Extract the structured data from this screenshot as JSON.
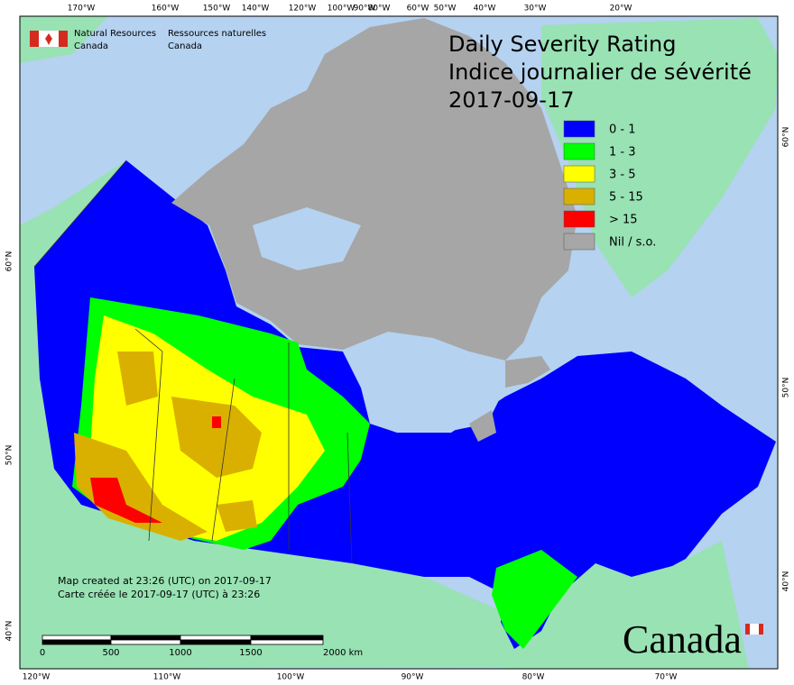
{
  "agency": {
    "en": [
      "Natural Resources",
      "Canada"
    ],
    "fr": [
      "Ressources naturelles",
      "Canada"
    ]
  },
  "title": {
    "lines": [
      "Daily Severity Rating",
      "Indice journalier de sévérité",
      "2017-09-17"
    ]
  },
  "legend": [
    {
      "label": "0 - 1",
      "color": "#0000ff"
    },
    {
      "label": "1 - 3",
      "color": "#00ff00"
    },
    {
      "label": "3 - 5",
      "color": "#ffff00"
    },
    {
      "label": "5 - 15",
      "color": "#d9b000"
    },
    {
      "label": "> 15",
      "color": "#ff0000"
    },
    {
      "label": "Nil / s.o.",
      "color": "#a6a6a6"
    }
  ],
  "credits": [
    "Map created at 23:26 (UTC) on 2017-09-17",
    "Carte créée le 2017-09-17 (UTC) à 23:26"
  ],
  "scale_bar": [
    "0",
    "500",
    "1000",
    "1500",
    "2000 km"
  ],
  "wordmark": "Canada",
  "graticule": {
    "top": [
      "170°W",
      "160°W",
      "150°W",
      "140°W",
      "120°W",
      "100°W",
      "90°W",
      "80°W",
      "60°W",
      "50°W",
      "40°W",
      "30°W",
      "20°W"
    ],
    "bottom": [
      "120°W",
      "110°W",
      "100°W",
      "90°W",
      "80°W",
      "70°W"
    ],
    "left": [
      "60°N",
      "50°N",
      "40°N"
    ],
    "right": [
      "60°N",
      "50°N",
      "40°N"
    ]
  }
}
